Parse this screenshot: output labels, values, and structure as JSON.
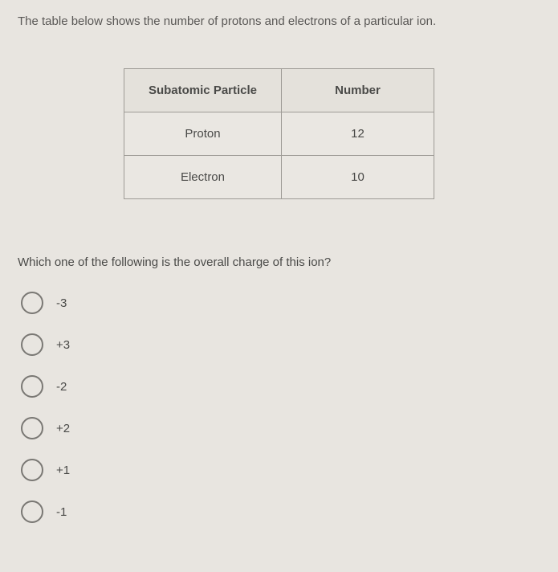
{
  "intro": "The table below shows the number of protons and electrons of a particular ion.",
  "table": {
    "columns": [
      "Subatomic Particle",
      "Number"
    ],
    "rows": [
      [
        "Proton",
        "12"
      ],
      [
        "Electron",
        "10"
      ]
    ],
    "border_color": "#9e9b96",
    "header_bg": "#e4e1db",
    "cell_bg": "#eae7e2",
    "font_size": 15
  },
  "question": "Which one of the following is the overall charge of this ion?",
  "options": [
    {
      "label": "-3"
    },
    {
      "label": "+3"
    },
    {
      "label": "-2"
    },
    {
      "label": "+2"
    },
    {
      "label": "+1"
    },
    {
      "label": "-1"
    }
  ],
  "colors": {
    "background": "#e8e5e0",
    "text": "#4a4a48",
    "radio_border": "#7a7874"
  }
}
